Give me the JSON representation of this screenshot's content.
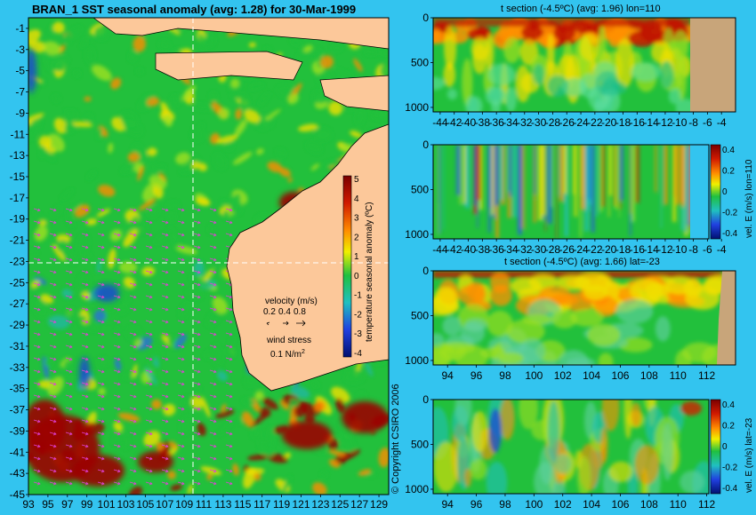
{
  "main_title": "BRAN_1  SST seasonal anomaly (avg: 1.28) for 30-Mar-1999",
  "copyright": "© Copyright CSIRO 2006",
  "colors": {
    "background": "#33c4ef",
    "land": "#fcc89a",
    "section_land": "#c8a57a",
    "warm": "#9b0000",
    "cool": "#1040c8",
    "neutral": "#22c03c"
  },
  "chart_data": [
    {
      "id": "map",
      "type": "heatmap",
      "title": "BRAN_1  SST seasonal anomaly (avg: 1.28) for 30-Mar-1999",
      "x_ticks": [
        93,
        95,
        97,
        99,
        101,
        103,
        105,
        107,
        109,
        111,
        113,
        115,
        117,
        119,
        121,
        123,
        125,
        127,
        129
      ],
      "y_ticks": [
        -1,
        -3,
        -5,
        -7,
        -9,
        -11,
        -13,
        -15,
        -17,
        -19,
        -21,
        -23,
        -25,
        -27,
        -29,
        -31,
        -33,
        -35,
        -37,
        -39,
        -41,
        -43,
        -45
      ],
      "xlim": [
        93,
        130
      ],
      "ylim": [
        -45,
        0
      ],
      "crosshair": {
        "lon": 110,
        "lat": -23
      },
      "colorbar": {
        "label": "temperature seasonal anomaly (ºC)",
        "ticks": [
          5,
          4,
          3,
          2,
          1,
          0,
          -1,
          -2,
          -3,
          -4
        ]
      },
      "legend": {
        "velocity_label": "velocity (m/s)",
        "velocity_values": [
          "0.2",
          "0.4",
          "0.8"
        ],
        "wind_label": "wind stress",
        "wind_value": "0.1 N/m",
        "wind_exponent": "2"
      }
    },
    {
      "id": "section1",
      "type": "heatmap",
      "title": "t section (-4.5ºC) (avg: 1.96) lon=110",
      "x_ticks": [
        -44,
        -42,
        -40,
        -38,
        -36,
        -34,
        -32,
        -30,
        -28,
        -26,
        -24,
        -22,
        -20,
        -18,
        -16,
        -14,
        -12,
        -10,
        -8,
        -6,
        -4
      ],
      "y_ticks": [
        0,
        500,
        1000
      ],
      "xlim": [
        -45,
        -2
      ],
      "ylim": [
        0,
        1050
      ]
    },
    {
      "id": "section2",
      "type": "heatmap",
      "title": "",
      "x_ticks": [
        -44,
        -42,
        -40,
        -38,
        -36,
        -34,
        -32,
        -30,
        -28,
        -26,
        -24,
        -22,
        -20,
        -18,
        -16,
        -14,
        -12,
        -10,
        -8,
        -6,
        -4
      ],
      "y_ticks": [
        0,
        500,
        1000
      ],
      "xlim": [
        -45,
        -2
      ],
      "ylim": [
        0,
        1050
      ],
      "colorbar": {
        "label": "vel. E (m/s) lon=110",
        "ticks": [
          "0.4",
          "0.2",
          "0",
          "-0.2",
          "-0.4"
        ]
      }
    },
    {
      "id": "section3",
      "type": "heatmap",
      "title": "t section (-4.5ºC) (avg: 1.66) lat=-23",
      "x_ticks": [
        94,
        96,
        98,
        100,
        102,
        104,
        106,
        108,
        110,
        112
      ],
      "y_ticks": [
        0,
        500,
        1000
      ],
      "xlim": [
        93,
        114
      ],
      "ylim": [
        0,
        1050
      ]
    },
    {
      "id": "section4",
      "type": "heatmap",
      "title": "",
      "x_ticks": [
        94,
        96,
        98,
        100,
        102,
        104,
        106,
        108,
        110,
        112
      ],
      "y_ticks": [
        0,
        500,
        1000
      ],
      "xlim": [
        93,
        114
      ],
      "ylim": [
        0,
        1050
      ],
      "colorbar": {
        "label": "vel. E (m/s) lat=-23",
        "ticks": [
          "0.4",
          "0.2",
          "0",
          "-0.2",
          "-0.4"
        ]
      }
    }
  ]
}
